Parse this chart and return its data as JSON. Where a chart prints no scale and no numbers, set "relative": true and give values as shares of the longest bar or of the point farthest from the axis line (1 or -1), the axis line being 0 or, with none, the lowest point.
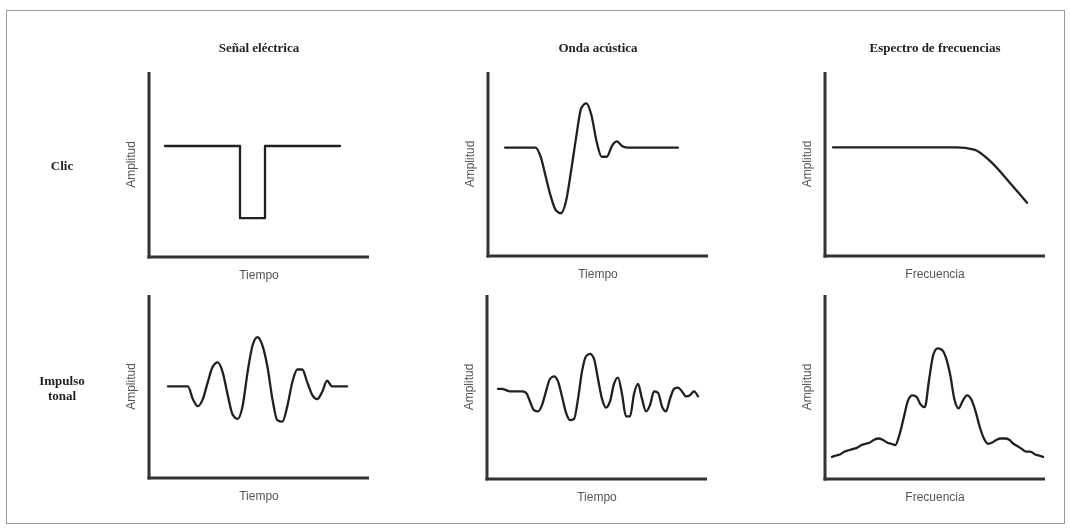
{
  "chart_data": [
    {
      "type": "step",
      "relative": true,
      "title": "Señal eléctrica",
      "xlabel": "Tiempo",
      "ylabel": "Amplitud",
      "annotations": [
        "Clic"
      ],
      "color": "#231f20",
      "categories": [
        null,
        null,
        null,
        null,
        null,
        null,
        null,
        null
      ],
      "values": [
        1,
        1,
        1,
        0.35,
        1,
        1,
        1,
        1
      ]
    },
    {
      "type": "line",
      "relative": true,
      "title": "Onda acústica",
      "xlabel": "Tiempo",
      "ylabel": "Amplitud",
      "color": "#231f20",
      "categories": [
        null,
        null,
        null,
        null,
        null,
        null,
        null,
        null,
        null,
        null,
        null,
        null,
        null,
        null,
        null,
        null,
        null,
        null,
        null,
        null,
        null,
        null,
        null,
        null,
        null,
        null,
        null,
        null,
        null,
        null,
        null,
        null,
        null,
        null,
        null
      ],
      "values": [
        0.71,
        0.71,
        0.71,
        0.71,
        0.71,
        0.71,
        0.71,
        0.65,
        0.52,
        0.39,
        0.3,
        0.28,
        0.36,
        0.56,
        0.78,
        0.97,
        1,
        0.92,
        0.75,
        0.65,
        0.65,
        0.72,
        0.75,
        0.72,
        0.71,
        0.71,
        0.71,
        0.71,
        0.71,
        0.71,
        0.71,
        0.71,
        0.71,
        0.71,
        0.71
      ]
    },
    {
      "type": "line",
      "relative": true,
      "title": "Espectro de frecuencias",
      "xlabel": "Frecuencia",
      "ylabel": "Amplitud",
      "color": "#231f20",
      "categories": [
        null,
        null,
        null,
        null,
        null,
        null,
        null,
        null,
        null,
        null,
        null,
        null
      ],
      "values": [
        1,
        1,
        1,
        1,
        1,
        1,
        1,
        1,
        0.98,
        0.86,
        0.68,
        0.49
      ]
    },
    {
      "type": "line",
      "relative": true,
      "xlabel": "Tiempo",
      "ylabel": "Amplitud",
      "annotations": [
        "Impulso tonal"
      ],
      "color": "#231f20",
      "categories": [
        null,
        null,
        null,
        null,
        null,
        null,
        null,
        null,
        null,
        null,
        null,
        null,
        null,
        null,
        null,
        null,
        null,
        null,
        null,
        null,
        null,
        null,
        null,
        null,
        null,
        null,
        null,
        null,
        null,
        null,
        null,
        null,
        null,
        null,
        null,
        null,
        null
      ],
      "values": [
        0.65,
        0.65,
        0.65,
        0.65,
        0.65,
        0.56,
        0.51,
        0.56,
        0.68,
        0.79,
        0.82,
        0.75,
        0.59,
        0.45,
        0.42,
        0.51,
        0.75,
        0.94,
        1,
        0.94,
        0.79,
        0.56,
        0.41,
        0.4,
        0.51,
        0.68,
        0.77,
        0.77,
        0.68,
        0.59,
        0.56,
        0.61,
        0.69,
        0.65,
        0.65,
        0.65,
        0.65
      ]
    },
    {
      "type": "line",
      "relative": true,
      "xlabel": "Tiempo",
      "ylabel": "Amplitud",
      "color": "#231f20",
      "categories": [
        null,
        null,
        null,
        null,
        null,
        null,
        null,
        null,
        null,
        null,
        null,
        null,
        null,
        null,
        null,
        null,
        null,
        null,
        null,
        null,
        null,
        null,
        null,
        null,
        null,
        null,
        null,
        null,
        null,
        null,
        null,
        null,
        null,
        null,
        null,
        null,
        null,
        null,
        null,
        null,
        null,
        null,
        null,
        null,
        null,
        null,
        null,
        null,
        null,
        null,
        null
      ],
      "values": [
        0.72,
        0.72,
        0.71,
        0.7,
        0.7,
        0.7,
        0.7,
        0.69,
        0.62,
        0.55,
        0.54,
        0.59,
        0.7,
        0.8,
        0.82,
        0.78,
        0.66,
        0.53,
        0.47,
        0.48,
        0.64,
        0.86,
        0.98,
        1,
        0.96,
        0.8,
        0.64,
        0.57,
        0.62,
        0.76,
        0.81,
        0.68,
        0.5,
        0.5,
        0.68,
        0.76,
        0.64,
        0.54,
        0.59,
        0.7,
        0.69,
        0.58,
        0.54,
        0.64,
        0.72,
        0.73,
        0.7,
        0.66,
        0.67,
        0.7,
        0.66
      ]
    },
    {
      "type": "line",
      "relative": true,
      "xlabel": "Frecuencia",
      "ylabel": "Amplitud",
      "color": "#231f20",
      "categories": [
        null,
        null,
        null,
        null,
        null,
        null,
        null,
        null,
        null,
        null,
        null,
        null,
        null,
        null,
        null,
        null,
        null,
        null,
        null,
        null,
        null,
        null,
        null,
        null,
        null,
        null,
        null,
        null,
        null,
        null,
        null,
        null,
        null,
        null,
        null,
        null,
        null,
        null,
        null,
        null,
        null,
        null,
        null,
        null,
        null,
        null,
        null,
        null,
        null,
        null,
        null
      ],
      "values": [
        0.17,
        0.18,
        0.19,
        0.21,
        0.22,
        0.23,
        0.24,
        0.26,
        0.27,
        0.28,
        0.3,
        0.31,
        0.3,
        0.28,
        0.27,
        0.26,
        0.34,
        0.47,
        0.6,
        0.64,
        0.63,
        0.57,
        0.55,
        0.76,
        0.95,
        1,
        0.99,
        0.93,
        0.8,
        0.61,
        0.54,
        0.6,
        0.64,
        0.61,
        0.52,
        0.4,
        0.31,
        0.27,
        0.28,
        0.3,
        0.31,
        0.31,
        0.3,
        0.27,
        0.25,
        0.23,
        0.21,
        0.21,
        0.19,
        0.18,
        0.17
      ]
    }
  ]
}
